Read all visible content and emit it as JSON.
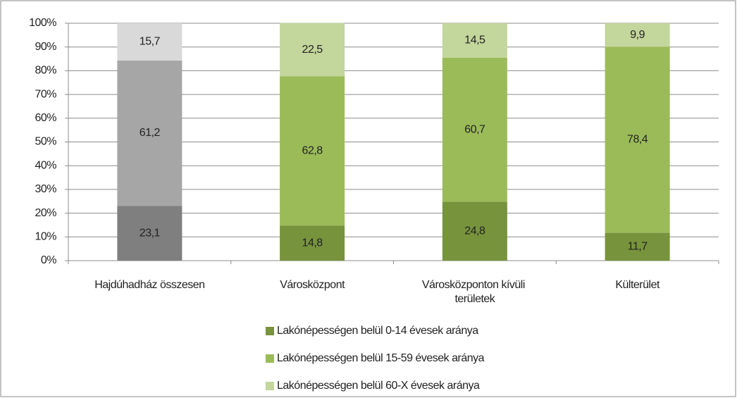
{
  "chart_data": {
    "type": "stacked_bar_100",
    "categories": [
      "Hajdúhadház összesen",
      "Városközpont",
      "Városközponton kívüli területek",
      "Külterület"
    ],
    "series": [
      {
        "name": "Lakónépességen belül 0-14 évesek aránya",
        "color": "#77933c",
        "colors": [
          "#7f7f7f",
          "#77933c",
          "#77933c",
          "#77933c"
        ],
        "values": [
          23.1,
          14.8,
          24.8,
          11.7
        ],
        "value_labels": [
          "23,1",
          "14,8",
          "24,8",
          "11,7"
        ]
      },
      {
        "name": "Lakónépességen belül 15-59 évesek aránya",
        "color": "#9bbb59",
        "colors": [
          "#a6a6a6",
          "#9bbb59",
          "#9bbb59",
          "#9bbb59"
        ],
        "values": [
          61.2,
          62.8,
          60.7,
          78.4
        ],
        "value_labels": [
          "61,2",
          "62,8",
          "60,7",
          "78,4"
        ]
      },
      {
        "name": "Lakónépességen belül 60-X évesek aránya",
        "color": "#c3d69b",
        "colors": [
          "#d9d9d9",
          "#c3d69b",
          "#c3d69b",
          "#c3d69b"
        ],
        "values": [
          15.7,
          22.5,
          14.5,
          9.9
        ],
        "value_labels": [
          "15,7",
          "22,5",
          "14,5",
          "9,9"
        ]
      }
    ],
    "ylim": [
      0,
      100
    ],
    "yticks": [
      {
        "value": 0,
        "label": "0%"
      },
      {
        "value": 10,
        "label": "10%"
      },
      {
        "value": 20,
        "label": "20%"
      },
      {
        "value": 30,
        "label": "30%"
      },
      {
        "value": 40,
        "label": "40%"
      },
      {
        "value": 50,
        "label": "50%"
      },
      {
        "value": 60,
        "label": "60%"
      },
      {
        "value": 70,
        "label": "70%"
      },
      {
        "value": 80,
        "label": "80%"
      },
      {
        "value": 90,
        "label": "90%"
      },
      {
        "value": 100,
        "label": "100%"
      }
    ],
    "grid": true,
    "legend": "bottom"
  }
}
